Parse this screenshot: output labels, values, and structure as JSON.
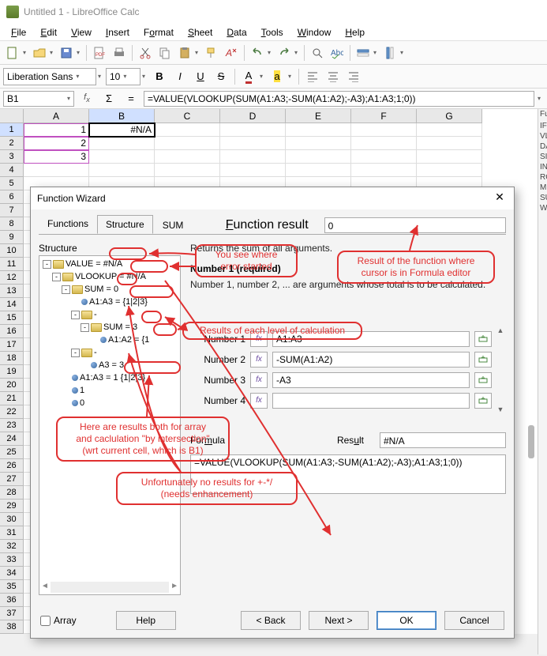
{
  "window": {
    "title": "Untitled 1 - LibreOffice Calc"
  },
  "menus": [
    "File",
    "Edit",
    "View",
    "Insert",
    "Format",
    "Sheet",
    "Data",
    "Tools",
    "Window",
    "Help"
  ],
  "menu_underlines": [
    0,
    0,
    0,
    0,
    1,
    0,
    0,
    0,
    0,
    0
  ],
  "font": {
    "name": "Liberation Sans",
    "size": "10"
  },
  "cellref": "B1",
  "formula": "=VALUE(VLOOKUP(SUM(A1:A3;-SUM(A1:A2);-A3);A1:A3;1;0))",
  "cols": [
    "A",
    "B",
    "C",
    "D",
    "E",
    "F",
    "G"
  ],
  "active_col_idx": 1,
  "rows_count": 38,
  "active_row": 1,
  "cells": {
    "A1": "1",
    "A2": "2",
    "A3": "3",
    "B1": "#N/A"
  },
  "selected_cell": "B1",
  "source_range": [
    "A1",
    "A2",
    "A3"
  ],
  "dialog": {
    "title": "Function Wizard",
    "tabs": [
      "Functions",
      "Structure"
    ],
    "active_tab": 1,
    "structure_label": "Structure",
    "fn_name": "SUM",
    "fn_result_label": "Function result",
    "fn_result": "0",
    "fn_desc": "Returns the sum of all arguments.",
    "arg_heading": "Number 1 (required)",
    "arg_desc": "Number 1, number 2, ... are arguments whose total is to be calculated.",
    "args": [
      {
        "label": "Number 1",
        "value": "A1:A3"
      },
      {
        "label": "Number 2",
        "value": "-SUM(A1:A2)"
      },
      {
        "label": "Number 3",
        "value": "-A3"
      },
      {
        "label": "Number 4",
        "value": ""
      }
    ],
    "formula_label": "Formula",
    "result_label": "Result",
    "result_value": "#N/A",
    "formula_text": "=VALUE(VLOOKUP(SUM(A1:A3;-SUM(A1:A2);-A3);A1:A3;1;0))",
    "array_label": "Array",
    "buttons": {
      "help": "Help",
      "back": "< Back",
      "next": "Next >",
      "ok": "OK",
      "cancel": "Cancel"
    },
    "tree": [
      {
        "indent": 0,
        "toggle": "-",
        "icon": "folder",
        "text": "VALUE = #N/A"
      },
      {
        "indent": 1,
        "toggle": "-",
        "icon": "folder",
        "text": "VLOOKUP = #N/A"
      },
      {
        "indent": 2,
        "toggle": "-",
        "icon": "folder",
        "text": "SUM = 0"
      },
      {
        "indent": 3,
        "toggle": "",
        "icon": "dot",
        "text": "A1:A3 = {1|2|3}"
      },
      {
        "indent": 3,
        "toggle": "-",
        "icon": "folder",
        "text": "-"
      },
      {
        "indent": 4,
        "toggle": "-",
        "icon": "folder",
        "text": "SUM = 3"
      },
      {
        "indent": 5,
        "toggle": "",
        "icon": "dot",
        "text": "A1:A2 = {1"
      },
      {
        "indent": 3,
        "toggle": "-",
        "icon": "folder",
        "text": "-"
      },
      {
        "indent": 4,
        "toggle": "",
        "icon": "dot",
        "text": "A3 = 3"
      },
      {
        "indent": 2,
        "toggle": "",
        "icon": "dot",
        "text": "A1:A3 = 1  {1|2|3}"
      },
      {
        "indent": 2,
        "toggle": "",
        "icon": "dot",
        "text": "1"
      },
      {
        "indent": 2,
        "toggle": "",
        "icon": "dot",
        "text": "0"
      }
    ]
  },
  "callouts": {
    "c1": "You see where\nerror started",
    "c2": "Result of the function where\ncursor is in Formula editor",
    "c3": "Results of each level of calculation",
    "c4": "Here are results both for array\nand caclulation \"by intersection\"\n(wrt current cell, which is B1)",
    "c5": "Unfortunately no results for +-*/\n(needs enhancement)"
  },
  "side_list": [
    "Fu",
    "",
    "IF",
    "VL",
    "DA",
    "SI",
    "IN",
    "RO",
    "M",
    "SU",
    "W"
  ],
  "colors": {
    "accent_red": "#e03030",
    "ok_border": "#3a7abd"
  }
}
